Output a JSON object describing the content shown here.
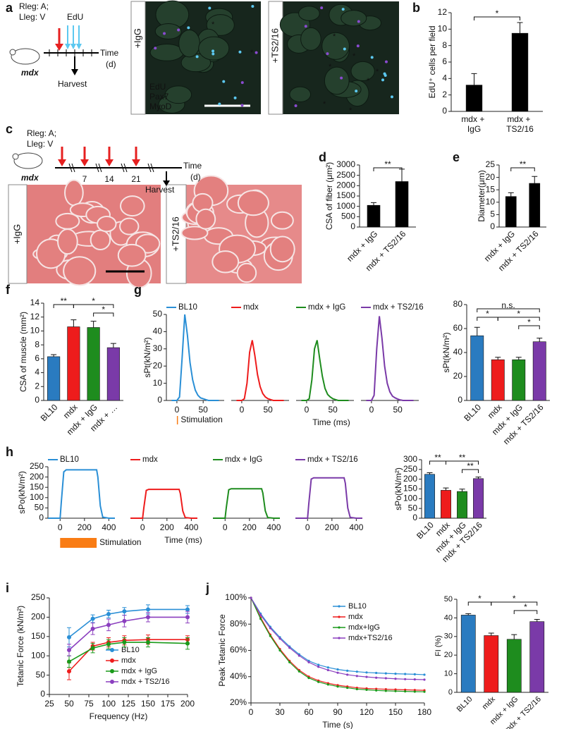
{
  "figure": {
    "panel_labels": [
      "a",
      "b",
      "c",
      "d",
      "e",
      "f",
      "g",
      "h",
      "i",
      "j"
    ],
    "a": {
      "injection_right": "Rleg: A;",
      "injection_left": "Lleg: V",
      "pulse": "EdU",
      "time": "Time",
      "time_unit": "(d)",
      "harvest": "Harvest",
      "mouse": "mdx",
      "images": [
        "+IgG",
        "+TS2/16"
      ],
      "image_mark": "*",
      "channels": [
        {
          "name": "EdU",
          "color": "#5cc8f0"
        },
        {
          "name": "Pax7",
          "color": "#3ccc3c"
        },
        {
          "name": "MyoD",
          "color": "#e63030"
        }
      ]
    },
    "c": {
      "injection_right": "Rleg: A;",
      "injection_left": "Lleg: V",
      "time": "Time",
      "time_unit": "(d)",
      "harvest": "Harvest",
      "mouse": "mdx",
      "days": [
        "7",
        "14",
        "21"
      ],
      "images": [
        "+IgG",
        "+TS2/16"
      ]
    }
  },
  "chart_data": [
    {
      "type": "bar",
      "ylabel": "EdU⁺ cells per field",
      "categories": [
        "mdx + IgG",
        "mdx + TS2/16"
      ],
      "values": [
        3.2,
        9.5
      ],
      "errors": [
        1.4,
        1.3
      ],
      "color": "#000000",
      "ylim": [
        0,
        12
      ],
      "yticks": [
        0,
        2,
        4,
        6,
        8,
        10,
        12
      ],
      "significance": [
        {
          "pair": [
            "mdx + IgG",
            "mdx + TS2/16"
          ],
          "label": "*"
        }
      ]
    },
    {
      "type": "bar",
      "ylabel": "CSA of fiber (μm²)",
      "categories": [
        "mdx + IgG",
        "mdx + TS2/16"
      ],
      "values": [
        1050,
        2200
      ],
      "errors": [
        130,
        600
      ],
      "color": "#000000",
      "ylim": [
        0,
        3000
      ],
      "yticks": [
        0,
        500,
        1000,
        1500,
        2000,
        2500,
        3000
      ],
      "significance": [
        {
          "pair": [
            "mdx + IgG",
            "mdx + TS2/16"
          ],
          "label": "**"
        }
      ]
    },
    {
      "type": "bar",
      "ylabel": "Diameter(μm)",
      "categories": [
        "mdx + IgG",
        "mdx + TS2/16"
      ],
      "values": [
        12.3,
        17.6
      ],
      "errors": [
        1.5,
        2.8
      ],
      "color": "#000000",
      "ylim": [
        0,
        25
      ],
      "yticks": [
        0,
        5,
        10,
        15,
        20,
        25
      ],
      "significance": [
        {
          "pair": [
            "mdx + IgG",
            "mdx + TS2/16"
          ],
          "label": "**"
        }
      ]
    },
    {
      "type": "bar",
      "ylabel": "CSA of muscle (mm²)",
      "categories": [
        "BL10",
        "mdx",
        "mdx + IgG",
        "mdx + …"
      ],
      "values": [
        6.3,
        10.6,
        10.5,
        7.6
      ],
      "errors": [
        0.3,
        1.0,
        0.9,
        0.6
      ],
      "colors": [
        "#2a7bc0",
        "#ee1c1c",
        "#1e8c1e",
        "#7a3aa8"
      ],
      "ylim": [
        0,
        14
      ],
      "yticks": [
        0,
        2,
        4,
        6,
        8,
        10,
        12,
        14
      ],
      "significance": [
        {
          "pair": [
            "BL10",
            "mdx"
          ],
          "label": "**"
        },
        {
          "pair": [
            "mdx",
            "mdx + …"
          ],
          "label": "*"
        },
        {
          "pair": [
            "mdx + IgG",
            "mdx + …"
          ],
          "label": "*"
        }
      ]
    },
    {
      "type": "trace",
      "ylabel": "sPt(kN/m²)",
      "xlabel": "Time (ms)",
      "annotation": "Stimulation",
      "stimulation_ms": [
        0,
        1
      ],
      "x": [
        -10,
        -5,
        0,
        5,
        10,
        15,
        20,
        25,
        30,
        35,
        40,
        45,
        50,
        55,
        60,
        65,
        70,
        75,
        80
      ],
      "xlim": [
        -20,
        90
      ],
      "xticks": [
        0,
        50
      ],
      "ylim": [
        0,
        50
      ],
      "yticks": [
        0,
        10,
        20,
        30,
        40,
        50
      ],
      "series": [
        {
          "name": "BL10",
          "color": "#2a8fd6",
          "values": [
            0,
            0,
            0,
            2,
            25,
            50,
            38,
            22,
            12,
            6,
            3,
            1.5,
            1,
            0.5,
            0,
            0,
            0,
            0,
            0
          ]
        },
        {
          "name": "mdx",
          "color": "#ee1c1c",
          "values": [
            0,
            0,
            0,
            1,
            10,
            28,
            35,
            26,
            15,
            8,
            4,
            2,
            1,
            0.5,
            0,
            0,
            0,
            0,
            0
          ]
        },
        {
          "name": "mdx + IgG",
          "color": "#1e8c1e",
          "values": [
            0,
            0,
            0,
            1,
            12,
            30,
            35,
            24,
            14,
            7,
            3.5,
            2,
            1,
            0.5,
            0,
            0,
            0,
            0,
            0
          ]
        },
        {
          "name": "mdx + TS2/16",
          "color": "#7a3aa8",
          "values": [
            0,
            0,
            0,
            3,
            30,
            49,
            36,
            20,
            10,
            5,
            2.5,
            1.5,
            0.8,
            0.3,
            0,
            0,
            0,
            0,
            0
          ]
        }
      ]
    },
    {
      "type": "bar",
      "ylabel": "sPt(kN/m²)",
      "categories": [
        "BL10",
        "mdx",
        "mdx + IgG",
        "mdx + TS2/16"
      ],
      "values": [
        54,
        34,
        34,
        49
      ],
      "errors": [
        7,
        2,
        2,
        3
      ],
      "colors": [
        "#2a7bc0",
        "#ee1c1c",
        "#1e8c1e",
        "#7a3aa8"
      ],
      "ylim": [
        0,
        80
      ],
      "yticks": [
        0,
        20,
        40,
        60,
        80
      ],
      "significance": [
        {
          "pair": [
            "BL10",
            "mdx + TS2/16"
          ],
          "label": "n.s."
        },
        {
          "pair": [
            "BL10",
            "mdx"
          ],
          "label": "*"
        },
        {
          "pair": [
            "mdx",
            "mdx + TS2/16"
          ],
          "label": "*"
        },
        {
          "pair": [
            "mdx + IgG",
            "mdx + TS2/16"
          ],
          "label": "*"
        }
      ]
    },
    {
      "type": "trace",
      "ylabel": "sPo(kN/m²)",
      "xlabel": "Time (ms)",
      "annotation": "Stimulation",
      "stimulation_ms": [
        0,
        300
      ],
      "x": [
        -100,
        0,
        10,
        30,
        50,
        100,
        200,
        300,
        310,
        330,
        350,
        400,
        450
      ],
      "xlim": [
        -100,
        450
      ],
      "xticks": [
        0,
        200,
        400
      ],
      "ylim": [
        0,
        250
      ],
      "yticks": [
        0,
        50,
        100,
        150,
        200,
        250
      ],
      "series": [
        {
          "name": "BL10",
          "color": "#2a8fd6",
          "values": [
            0,
            0,
            80,
            225,
            235,
            235,
            235,
            235,
            200,
            60,
            5,
            0,
            0
          ]
        },
        {
          "name": "mdx",
          "color": "#ee1c1c",
          "values": [
            0,
            0,
            50,
            135,
            140,
            140,
            140,
            140,
            120,
            35,
            3,
            0,
            0
          ]
        },
        {
          "name": "mdx + IgG",
          "color": "#1e8c1e",
          "values": [
            0,
            0,
            52,
            138,
            143,
            143,
            143,
            143,
            122,
            36,
            3,
            0,
            0
          ]
        },
        {
          "name": "mdx + TS2/16",
          "color": "#7a3aa8",
          "values": [
            0,
            0,
            70,
            190,
            196,
            196,
            196,
            196,
            170,
            50,
            4,
            0,
            0
          ]
        }
      ]
    },
    {
      "type": "bar",
      "ylabel": "sPo(kN/m²)",
      "categories": [
        "BL10",
        "mdx",
        "mdx + IgG",
        "mdx + TS2/16"
      ],
      "values": [
        225,
        143,
        137,
        203
      ],
      "errors": [
        8,
        12,
        12,
        8
      ],
      "colors": [
        "#2a7bc0",
        "#ee1c1c",
        "#1e8c1e",
        "#7a3aa8"
      ],
      "ylim": [
        0,
        300
      ],
      "yticks": [
        0,
        50,
        100,
        150,
        200,
        250,
        300
      ],
      "significance": [
        {
          "pair": [
            "BL10",
            "mdx"
          ],
          "label": "**"
        },
        {
          "pair": [
            "mdx",
            "mdx + TS2/16"
          ],
          "label": "**"
        },
        {
          "pair": [
            "mdx + IgG",
            "mdx + TS2/16"
          ],
          "label": "**"
        }
      ]
    },
    {
      "type": "line",
      "xlabel": "Frequency (Hz)",
      "ylabel": "Tetanic Force (kN/m²)",
      "x": [
        50,
        80,
        100,
        120,
        150,
        200
      ],
      "xlim": [
        25,
        200
      ],
      "xticks": [
        25,
        50,
        75,
        100,
        125,
        150,
        175,
        200
      ],
      "ylim": [
        0,
        250
      ],
      "yticks": [
        0,
        50,
        100,
        150,
        200,
        250
      ],
      "series": [
        {
          "name": "BL10",
          "color": "#2a8fd6",
          "values": [
            148,
            196,
            208,
            215,
            220,
            220
          ],
          "errors": [
            25,
            10,
            10,
            10,
            12,
            10
          ]
        },
        {
          "name": "mdx",
          "color": "#ee1c1c",
          "values": [
            60,
            125,
            135,
            140,
            142,
            142
          ],
          "errors": [
            22,
            10,
            12,
            12,
            12,
            10
          ]
        },
        {
          "name": "mdx + IgG",
          "color": "#1a9a1a",
          "values": [
            85,
            120,
            130,
            135,
            135,
            132
          ],
          "errors": [
            15,
            12,
            12,
            12,
            12,
            15
          ]
        },
        {
          "name": "mdx + TS2/16",
          "color": "#8b3fbf",
          "values": [
            115,
            170,
            180,
            190,
            200,
            200
          ],
          "errors": [
            15,
            15,
            15,
            15,
            12,
            15
          ]
        }
      ]
    },
    {
      "type": "line",
      "xlabel": "Time (s)",
      "ylabel": "Peak Tetanic Force",
      "x": [
        0,
        10,
        20,
        30,
        40,
        50,
        60,
        70,
        80,
        90,
        100,
        110,
        120,
        130,
        140,
        150,
        160,
        170,
        180
      ],
      "xlim": [
        0,
        180
      ],
      "xticks": [
        0,
        30,
        60,
        90,
        120,
        150,
        180
      ],
      "ylim": [
        20,
        100
      ],
      "yticks": [
        {
          "value": 20,
          "label": "20%"
        },
        {
          "value": 40,
          "label": "40%"
        },
        {
          "value": 60,
          "label": "60%"
        },
        {
          "value": 80,
          "label": "80%"
        },
        {
          "value": 100,
          "label": "100%"
        }
      ],
      "series": [
        {
          "name": "BL10",
          "color": "#2a8fd6",
          "values": [
            100,
            88,
            78,
            70,
            63,
            57,
            52,
            49,
            47,
            45.5,
            44.5,
            43.8,
            43.2,
            42.8,
            42.5,
            42.2,
            42,
            41.8,
            41.5
          ]
        },
        {
          "name": "mdx",
          "color": "#ee1c1c",
          "values": [
            100,
            85,
            72,
            61,
            52,
            45,
            40,
            37,
            35,
            33.5,
            32.5,
            31.5,
            31,
            30.7,
            30.4,
            30.2,
            30,
            29.8,
            29.6
          ]
        },
        {
          "name": "mdx+IgG",
          "color": "#1a9a1a",
          "values": [
            100,
            84,
            71,
            60,
            51,
            44,
            39,
            36,
            34,
            32.5,
            31.5,
            30.5,
            30,
            29.5,
            29.2,
            29,
            28.8,
            28.6,
            28.5
          ]
        },
        {
          "name": "mdx+TS2/16",
          "color": "#8b3fbf",
          "values": [
            100,
            87,
            77,
            69,
            62,
            56,
            51,
            47.5,
            45,
            43,
            41.5,
            40.5,
            39.8,
            39.2,
            38.8,
            38.4,
            38.1,
            37.9,
            37.7
          ]
        }
      ]
    },
    {
      "type": "bar",
      "ylabel": "FI (%)",
      "categories": [
        "BL10",
        "mdx",
        "mdx + IgG",
        "mdx + TS2/16"
      ],
      "values": [
        41.5,
        30.5,
        28.5,
        38
      ],
      "errors": [
        0.8,
        1.3,
        2.5,
        1.2
      ],
      "colors": [
        "#2a7bc0",
        "#ee1c1c",
        "#1e8c1e",
        "#7a3aa8"
      ],
      "ylim": [
        0,
        50
      ],
      "yticks": [
        0,
        10,
        20,
        30,
        40,
        50
      ],
      "significance": [
        {
          "pair": [
            "BL10",
            "mdx"
          ],
          "label": "*"
        },
        {
          "pair": [
            "mdx",
            "mdx + TS2/16"
          ],
          "label": "*"
        },
        {
          "pair": [
            "mdx + IgG",
            "mdx + TS2/16"
          ],
          "label": "*"
        }
      ]
    }
  ]
}
